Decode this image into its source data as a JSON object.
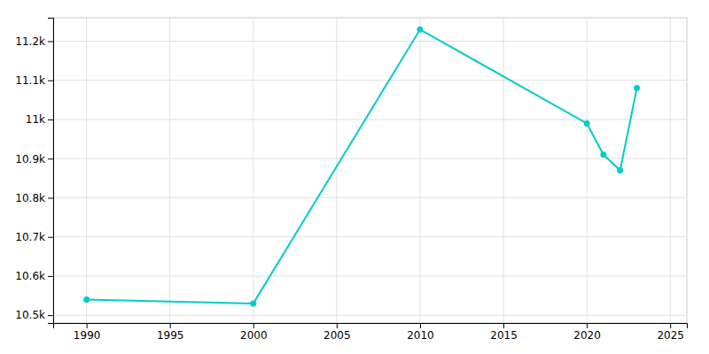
{
  "chart_data": {
    "type": "line",
    "x": [
      1990,
      2000,
      2010,
      2020,
      2021,
      2022,
      2023
    ],
    "values": [
      10540,
      10530,
      11230,
      10990,
      10910,
      10870,
      11080
    ],
    "color": "#00CCCC",
    "marker": "circle",
    "xlim": [
      1988,
      2026
    ],
    "xticks": [
      1990,
      1995,
      2000,
      2005,
      2010,
      2015,
      2020,
      2025
    ],
    "ylim": [
      10480,
      11260
    ],
    "yticks": [
      {
        "value": 10500,
        "label": "10.5k"
      },
      {
        "value": 10600,
        "label": "10.6k"
      },
      {
        "value": 10700,
        "label": "10.7k"
      },
      {
        "value": 10800,
        "label": "10.8k"
      },
      {
        "value": 10900,
        "label": "10.9k"
      },
      {
        "value": 11000,
        "label": "11k"
      },
      {
        "value": 11100,
        "label": "11.1k"
      },
      {
        "value": 11200,
        "label": "11.2k"
      }
    ],
    "grid": true
  }
}
